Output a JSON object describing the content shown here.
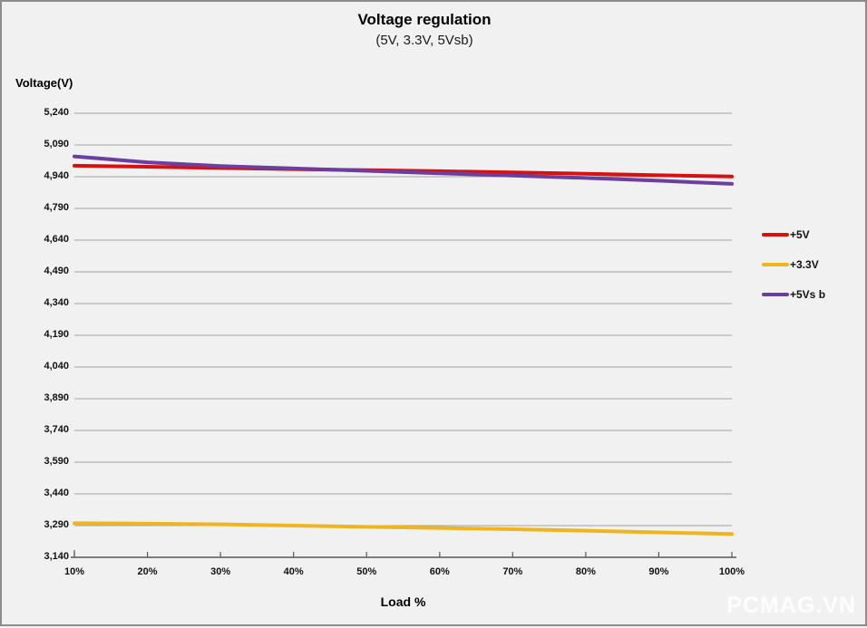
{
  "page": {
    "watermark": "PCMAG.VN"
  },
  "chart_data": {
    "type": "line",
    "title": "Voltage regulation",
    "subtitle": "(5V, 3.3V, 5Vsb)",
    "ylabel": "Voltage(V)",
    "xlabel": "Load %",
    "categories": [
      "10%",
      "20%",
      "30%",
      "40%",
      "50%",
      "60%",
      "70%",
      "80%",
      "90%",
      "100%"
    ],
    "y_ticks": [
      "5,240",
      "5,090",
      "4,940",
      "4,790",
      "4,640",
      "4,490",
      "4,340",
      "4,190",
      "4,040",
      "3,890",
      "3,740",
      "3,590",
      "3,440",
      "3,290",
      "3,140"
    ],
    "y_tick_values": [
      5240,
      5090,
      4940,
      4790,
      4640,
      4490,
      4340,
      4190,
      4040,
      3890,
      3740,
      3590,
      3440,
      3290,
      3140
    ],
    "ylim": [
      3140,
      5240
    ],
    "grid": true,
    "legend_position": "right",
    "series": [
      {
        "name": "+5V",
        "color": "#d81010",
        "values": [
          4992,
          4987,
          4981,
          4976,
          4971,
          4966,
          4960,
          4954,
          4947,
          4941
        ]
      },
      {
        "name": "+3.3V",
        "color": "#f0b41e",
        "values": [
          3301,
          3299,
          3296,
          3290,
          3284,
          3279,
          3273,
          3266,
          3258,
          3250
        ]
      },
      {
        "name": "+5Vs b",
        "color": "#6a3fa0",
        "values": [
          5036,
          5008,
          4990,
          4979,
          4968,
          4956,
          4945,
          4934,
          4921,
          4906
        ]
      }
    ],
    "colors": {
      "background": "#f1f1f1",
      "border": "#8c8c8c",
      "gridline": "#a3a3a3",
      "axis": "#595959"
    }
  }
}
